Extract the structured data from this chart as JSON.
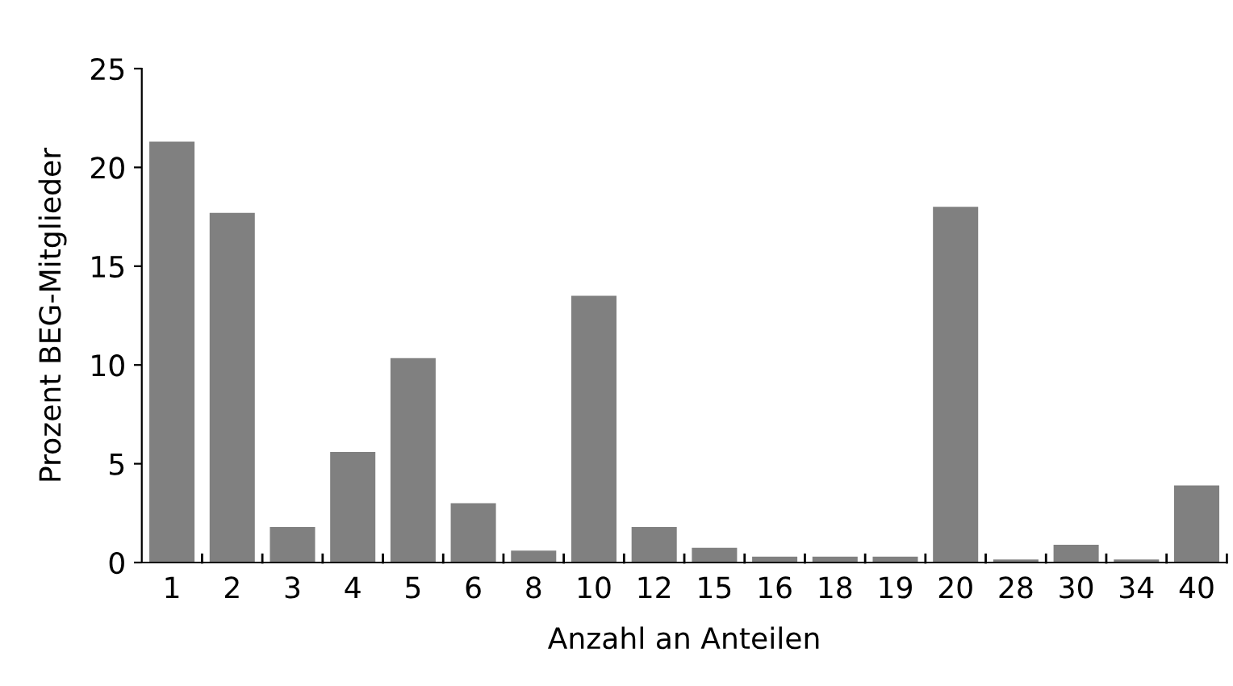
{
  "chart_data": {
    "type": "bar",
    "xlabel": "Anzahl an Anteilen",
    "ylabel": "Prozent BEG-Mitglieder",
    "categories": [
      "1",
      "2",
      "3",
      "4",
      "5",
      "6",
      "8",
      "10",
      "12",
      "15",
      "16",
      "18",
      "19",
      "20",
      "28",
      "30",
      "34",
      "40"
    ],
    "values": [
      21.3,
      17.7,
      1.8,
      5.6,
      10.35,
      3.0,
      0.6,
      13.5,
      1.8,
      0.75,
      0.3,
      0.3,
      0.3,
      18.0,
      0.15,
      0.9,
      0.15,
      3.9
    ],
    "color": "#808080",
    "ylim": [
      0,
      25
    ],
    "yticks": [
      0,
      5,
      10,
      15,
      20,
      25
    ],
    "grid": false
  }
}
